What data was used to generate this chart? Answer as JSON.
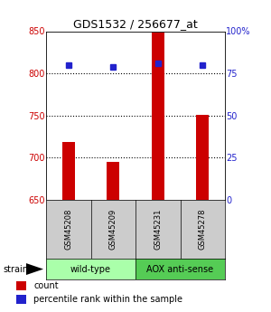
{
  "title": "GDS1532 / 256677_at",
  "samples": [
    "GSM45208",
    "GSM45209",
    "GSM45231",
    "GSM45278"
  ],
  "counts": [
    718,
    695,
    848,
    751
  ],
  "percentiles": [
    80,
    79,
    81,
    80
  ],
  "y_min": 650,
  "y_max": 850,
  "y_ticks": [
    650,
    700,
    750,
    800,
    850
  ],
  "y2_ticks": [
    0,
    25,
    50,
    75,
    100
  ],
  "y2_tick_labels": [
    "0",
    "25",
    "50",
    "75",
    "100%"
  ],
  "bar_color": "#cc0000",
  "dot_color": "#2222cc",
  "bar_width": 0.28,
  "groups": [
    {
      "label": "wild-type",
      "color": "#aaffaa"
    },
    {
      "label": "AOX anti-sense",
      "color": "#55cc55"
    }
  ],
  "strain_label": "strain",
  "legend_items": [
    {
      "color": "#cc0000",
      "label": "count"
    },
    {
      "color": "#2222cc",
      "label": "percentile rank within the sample"
    }
  ],
  "bg_color": "#ffffff",
  "plot_bg": "#ffffff",
  "label_area_bg": "#cccccc",
  "y_tick_color": "#cc0000",
  "y2_tick_color": "#2222cc",
  "title_fontsize": 9
}
